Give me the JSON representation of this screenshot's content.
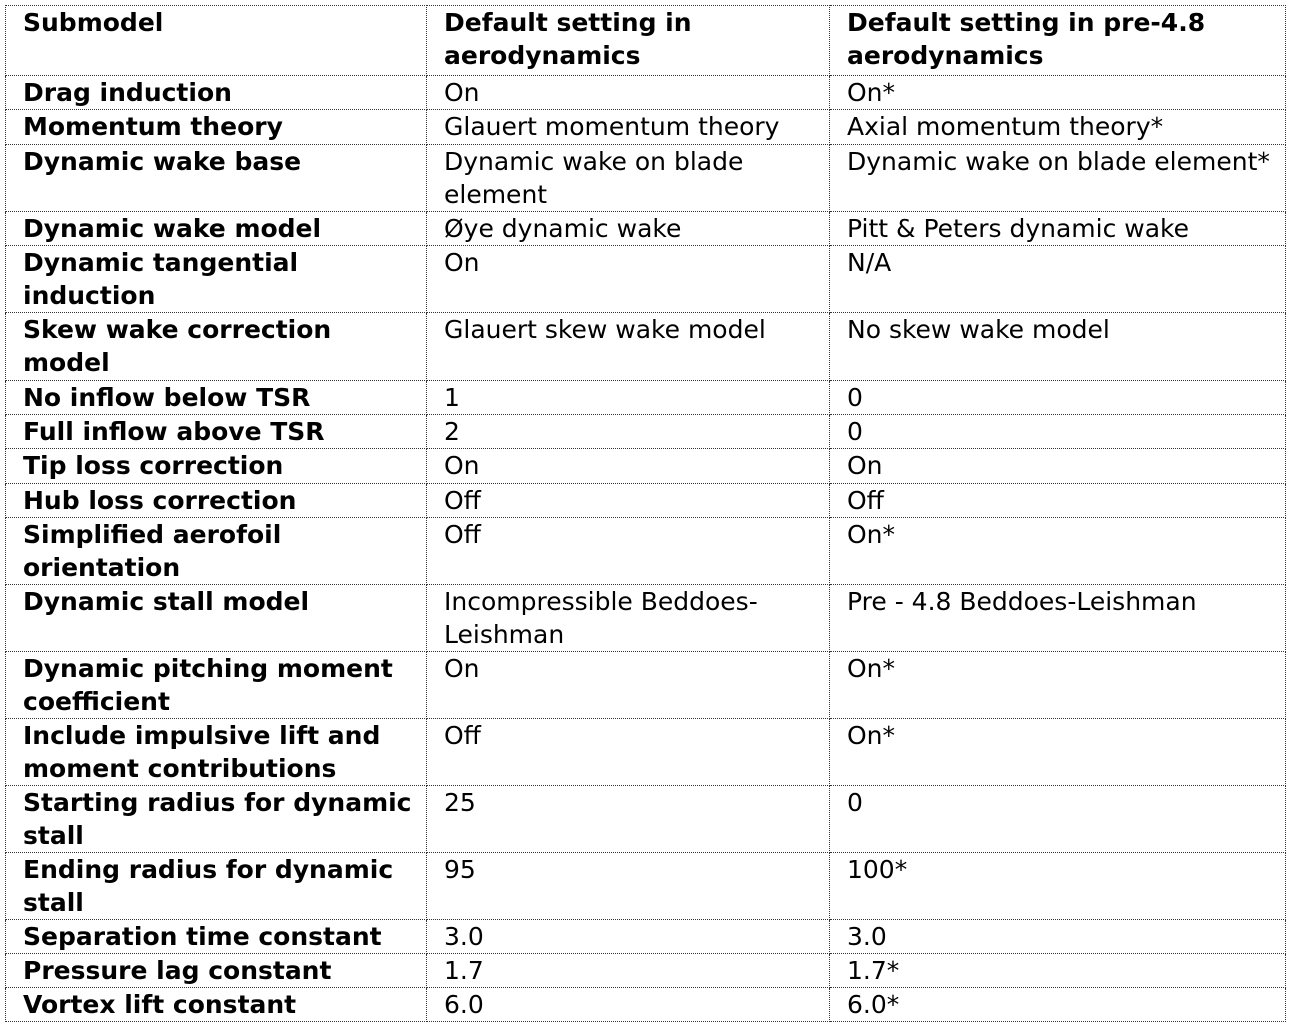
{
  "header": [
    "Submodel",
    "Default setting in aerodynamics",
    "Default setting in pre-4.8 aerodynamics"
  ],
  "rows": [
    [
      "Drag induction",
      "On",
      "On*"
    ],
    [
      "Momentum theory",
      "Glauert momentum theory",
      "Axial momentum theory*"
    ],
    [
      "Dynamic wake base",
      "Dynamic wake on blade element",
      "Dynamic wake on blade element*"
    ],
    [
      "Dynamic wake model",
      "Øye dynamic wake",
      "Pitt & Peters dynamic wake"
    ],
    [
      "Dynamic tangential induction",
      "On",
      "N/A"
    ],
    [
      "Skew wake correction model",
      "Glauert skew wake model",
      "No skew wake model"
    ],
    [
      "No inflow below TSR",
      "1",
      "0"
    ],
    [
      "Full inflow above TSR",
      "2",
      "0"
    ],
    [
      "Tip loss correction",
      "On",
      "On"
    ],
    [
      "Hub loss correction",
      "Off",
      "Off"
    ],
    [
      "Simplified aerofoil orientation",
      "Off",
      "On*"
    ],
    [
      "Dynamic stall model",
      "Incompressible Beddoes-Leishman",
      "Pre - 4.8 Beddoes-Leishman"
    ],
    [
      "Dynamic pitching moment coefficient",
      "On",
      "On*"
    ],
    [
      "Include impulsive lift and moment contributions",
      "Off",
      "On*"
    ],
    [
      "Starting radius for dynamic stall",
      "25",
      "0"
    ],
    [
      "Ending radius for dynamic stall",
      "95",
      "100*"
    ],
    [
      "Separation time constant",
      "3.0",
      "3.0"
    ],
    [
      "Pressure lag constant",
      "1.7",
      "1.7*"
    ],
    [
      "Vortex lift constant",
      "6.0",
      "6.0*"
    ]
  ]
}
